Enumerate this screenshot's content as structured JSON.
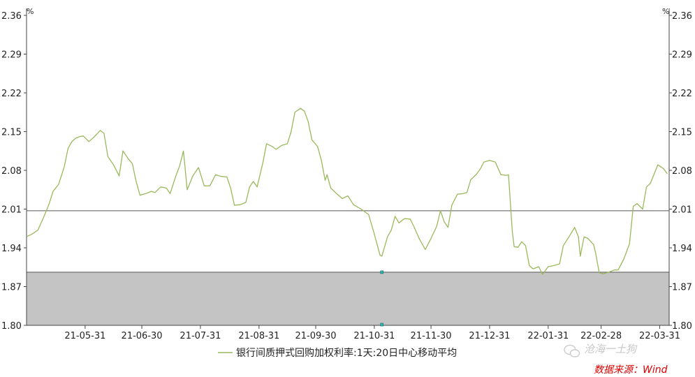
{
  "chart_data": {
    "type": "line",
    "unit_left": "%",
    "unit_right": "%",
    "y_ticks": [
      "2.36",
      "2.29",
      "2.22",
      "2.15",
      "2.08",
      "2.01",
      "1.94",
      "1.87",
      "1.80"
    ],
    "ylim": [
      1.8,
      2.36
    ],
    "x_tick_labels": [
      "21-05-31",
      "21-06-30",
      "21-07-31",
      "21-08-31",
      "21-09-30",
      "21-10-31",
      "21-11-30",
      "21-12-31",
      "22-01-31",
      "22-02-28",
      "22-03-31"
    ],
    "x_tick_dates": [
      "2021-05-31",
      "2021-06-30",
      "2021-07-31",
      "2021-08-31",
      "2021-09-30",
      "2021-10-31",
      "2021-11-30",
      "2021-12-31",
      "2022-01-31",
      "2022-02-28",
      "2022-03-31"
    ],
    "x_range": [
      "2021-04-30",
      "2022-04-05"
    ],
    "reference_line": 2.007,
    "shaded_band": [
      1.8,
      1.896
    ],
    "series": [
      {
        "name": "银行间质押式回购加权利率:1天:20日中心移动平均",
        "color": "#9ab85c",
        "points": [
          [
            "2021-04-30",
            1.96
          ],
          [
            "2021-05-03",
            1.965
          ],
          [
            "2021-05-06",
            1.972
          ],
          [
            "2021-05-09",
            1.995
          ],
          [
            "2021-05-12",
            2.02
          ],
          [
            "2021-05-14",
            2.042
          ],
          [
            "2021-05-17",
            2.055
          ],
          [
            "2021-05-20",
            2.087
          ],
          [
            "2021-05-22",
            2.12
          ],
          [
            "2021-05-24",
            2.132
          ],
          [
            "2021-05-26",
            2.138
          ],
          [
            "2021-05-28",
            2.141
          ],
          [
            "2021-05-30",
            2.142
          ],
          [
            "2021-06-02",
            2.132
          ],
          [
            "2021-06-05",
            2.141
          ],
          [
            "2021-06-08",
            2.152
          ],
          [
            "2021-06-10",
            2.147
          ],
          [
            "2021-06-12",
            2.105
          ],
          [
            "2021-06-15",
            2.09
          ],
          [
            "2021-06-18",
            2.07
          ],
          [
            "2021-06-20",
            2.115
          ],
          [
            "2021-06-23",
            2.1
          ],
          [
            "2021-06-25",
            2.092
          ],
          [
            "2021-06-27",
            2.06
          ],
          [
            "2021-06-29",
            2.035
          ],
          [
            "2021-07-02",
            2.038
          ],
          [
            "2021-07-05",
            2.042
          ],
          [
            "2021-07-07",
            2.04
          ],
          [
            "2021-07-10",
            2.05
          ],
          [
            "2021-07-13",
            2.048
          ],
          [
            "2021-07-15",
            2.038
          ],
          [
            "2021-07-18",
            2.07
          ],
          [
            "2021-07-20",
            2.088
          ],
          [
            "2021-07-22",
            2.115
          ],
          [
            "2021-07-24",
            2.045
          ],
          [
            "2021-07-27",
            2.07
          ],
          [
            "2021-07-30",
            2.085
          ],
          [
            "2021-08-02",
            2.052
          ],
          [
            "2021-08-05",
            2.052
          ],
          [
            "2021-08-08",
            2.072
          ],
          [
            "2021-08-11",
            2.069
          ],
          [
            "2021-08-14",
            2.068
          ],
          [
            "2021-08-16",
            2.048
          ],
          [
            "2021-08-18",
            2.017
          ],
          [
            "2021-08-21",
            2.018
          ],
          [
            "2021-08-24",
            2.022
          ],
          [
            "2021-08-26",
            2.05
          ],
          [
            "2021-08-28",
            2.06
          ],
          [
            "2021-08-30",
            2.05
          ],
          [
            "2021-09-02",
            2.093
          ],
          [
            "2021-09-04",
            2.128
          ],
          [
            "2021-09-07",
            2.123
          ],
          [
            "2021-09-09",
            2.118
          ],
          [
            "2021-09-12",
            2.125
          ],
          [
            "2021-09-15",
            2.128
          ],
          [
            "2021-09-17",
            2.15
          ],
          [
            "2021-09-19",
            2.185
          ],
          [
            "2021-09-22",
            2.192
          ],
          [
            "2021-09-24",
            2.187
          ],
          [
            "2021-09-26",
            2.168
          ],
          [
            "2021-09-28",
            2.135
          ],
          [
            "2021-10-01",
            2.123
          ],
          [
            "2021-10-03",
            2.098
          ],
          [
            "2021-10-05",
            2.062
          ],
          [
            "2021-10-06",
            2.072
          ],
          [
            "2021-10-08",
            2.048
          ],
          [
            "2021-10-11",
            2.038
          ],
          [
            "2021-10-14",
            2.029
          ],
          [
            "2021-10-17",
            2.034
          ],
          [
            "2021-10-20",
            2.018
          ],
          [
            "2021-10-24",
            2.01
          ],
          [
            "2021-10-28",
            2.0
          ],
          [
            "2021-10-31",
            1.965
          ],
          [
            "2021-11-03",
            1.927
          ],
          [
            "2021-11-04",
            1.925
          ],
          [
            "2021-11-07",
            1.96
          ],
          [
            "2021-11-09",
            1.972
          ],
          [
            "2021-11-11",
            1.997
          ],
          [
            "2021-11-13",
            1.985
          ],
          [
            "2021-11-16",
            1.993
          ],
          [
            "2021-11-19",
            1.992
          ],
          [
            "2021-11-21",
            1.978
          ],
          [
            "2021-11-24",
            1.955
          ],
          [
            "2021-11-26",
            1.943
          ],
          [
            "2021-11-27",
            1.937
          ],
          [
            "2021-11-30",
            1.957
          ],
          [
            "2021-12-03",
            1.979
          ],
          [
            "2021-12-05",
            2.007
          ],
          [
            "2021-12-07",
            1.987
          ],
          [
            "2021-12-09",
            1.977
          ],
          [
            "2021-12-11",
            2.017
          ],
          [
            "2021-12-14",
            2.037
          ],
          [
            "2021-12-17",
            2.038
          ],
          [
            "2021-12-19",
            2.04
          ],
          [
            "2021-12-21",
            2.063
          ],
          [
            "2021-12-24",
            2.073
          ],
          [
            "2021-12-26",
            2.082
          ],
          [
            "2021-12-28",
            2.095
          ],
          [
            "2021-12-31",
            2.098
          ],
          [
            "2022-01-03",
            2.095
          ],
          [
            "2022-01-06",
            2.072
          ],
          [
            "2022-01-09",
            2.071
          ],
          [
            "2022-01-10",
            2.072
          ],
          [
            "2022-01-12",
            1.97
          ],
          [
            "2022-01-13",
            1.942
          ],
          [
            "2022-01-15",
            1.941
          ],
          [
            "2022-01-17",
            1.951
          ],
          [
            "2022-01-19",
            1.944
          ],
          [
            "2022-01-21",
            1.908
          ],
          [
            "2022-01-23",
            1.902
          ],
          [
            "2022-01-26",
            1.906
          ],
          [
            "2022-01-28",
            1.892
          ],
          [
            "2022-01-31",
            1.906
          ],
          [
            "2022-02-03",
            1.908
          ],
          [
            "2022-02-06",
            1.911
          ],
          [
            "2022-02-08",
            1.944
          ],
          [
            "2022-02-11",
            1.96
          ],
          [
            "2022-02-14",
            1.977
          ],
          [
            "2022-02-16",
            1.96
          ],
          [
            "2022-02-17",
            1.925
          ],
          [
            "2022-02-19",
            1.96
          ],
          [
            "2022-02-21",
            1.957
          ],
          [
            "2022-02-24",
            1.946
          ],
          [
            "2022-02-25",
            1.932
          ],
          [
            "2022-02-27",
            1.895
          ],
          [
            "2022-03-01",
            1.893
          ],
          [
            "2022-03-04",
            1.896
          ],
          [
            "2022-03-07",
            1.9
          ],
          [
            "2022-03-09",
            1.9
          ],
          [
            "2022-03-12",
            1.92
          ],
          [
            "2022-03-15",
            1.947
          ],
          [
            "2022-03-17",
            2.015
          ],
          [
            "2022-03-19",
            2.02
          ],
          [
            "2022-03-22",
            2.01
          ],
          [
            "2022-03-24",
            2.05
          ],
          [
            "2022-03-26",
            2.056
          ],
          [
            "2022-03-28",
            2.073
          ],
          [
            "2022-03-30",
            2.09
          ],
          [
            "2022-04-02",
            2.083
          ],
          [
            "2022-04-04",
            2.074
          ]
        ]
      }
    ],
    "axis_dates_note": ""
  },
  "legend": {
    "label": "银行间质押式回购加权利率:1天:20日中心移动平均"
  },
  "source": {
    "label": "数据来源：Wind",
    "color": "#e00000"
  },
  "watermark": {
    "label": "沧海一土狗"
  }
}
